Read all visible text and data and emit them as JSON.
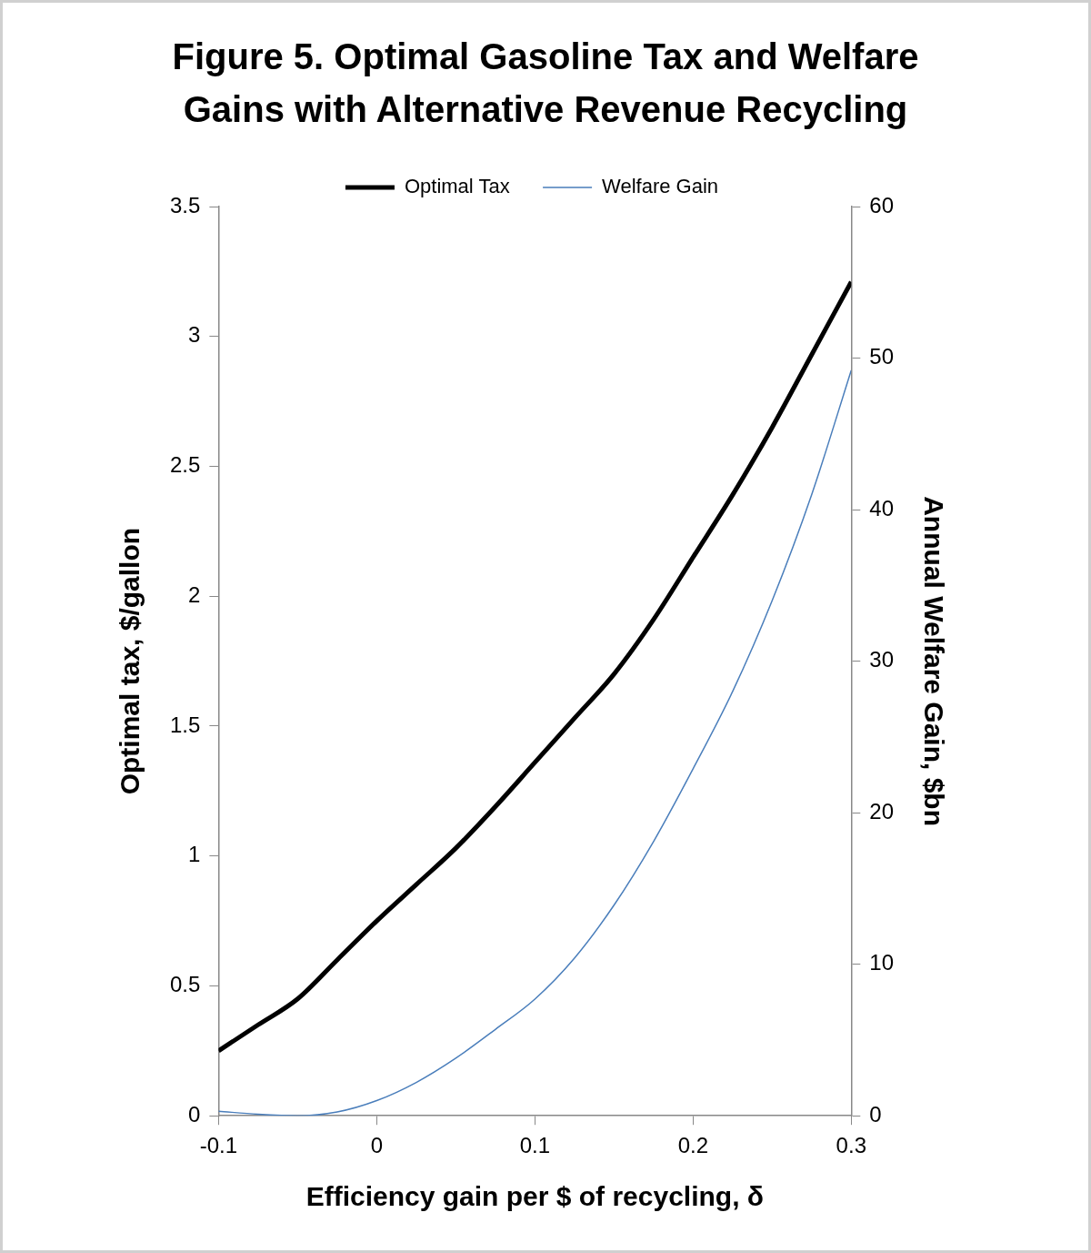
{
  "chart_data": {
    "type": "line",
    "title": "Figure 5. Optimal Gasoline Tax and Welfare Gains with Alternative Revenue Recycling",
    "xlabel": "Efficiency gain per $ of recycling, δ",
    "ylabel": "Optimal tax, $/gallon",
    "y2label": "Annual Welfare Gain, $bn",
    "x": [
      -0.1,
      -0.075,
      -0.05,
      -0.025,
      0,
      0.025,
      0.05,
      0.075,
      0.1,
      0.125,
      0.15,
      0.175,
      0.2,
      0.225,
      0.25,
      0.275,
      0.3
    ],
    "series": [
      {
        "name": "Optimal Tax",
        "color": "#000000",
        "values": [
          0.25,
          0.35,
          0.45,
          0.6,
          0.75,
          0.89,
          1.03,
          1.19,
          1.36,
          1.53,
          1.7,
          1.91,
          2.15,
          2.39,
          2.65,
          2.93,
          3.21
        ]
      },
      {
        "name": "Welfare Gain",
        "color": "#4a7ebb",
        "axis": "y2",
        "values": [
          0.3,
          0.1,
          0,
          0.25,
          1,
          2.2,
          3.8,
          5.7,
          7.7,
          10.4,
          13.9,
          18.1,
          22.9,
          28,
          34,
          41,
          49.2
        ]
      }
    ],
    "xlim": [
      -0.1,
      0.3
    ],
    "xticks": [
      -0.1,
      0,
      0.1,
      0.2,
      0.3
    ],
    "ylim": [
      0,
      3.5
    ],
    "yticks": [
      0,
      0.5,
      1,
      1.5,
      2,
      2.5,
      3,
      3.5
    ],
    "y2lim": [
      0,
      60
    ],
    "y2ticks": [
      0,
      10,
      20,
      30,
      40,
      50,
      60
    ],
    "grid": false,
    "legend": "top",
    "marker": "none",
    "line_style": "solid"
  }
}
